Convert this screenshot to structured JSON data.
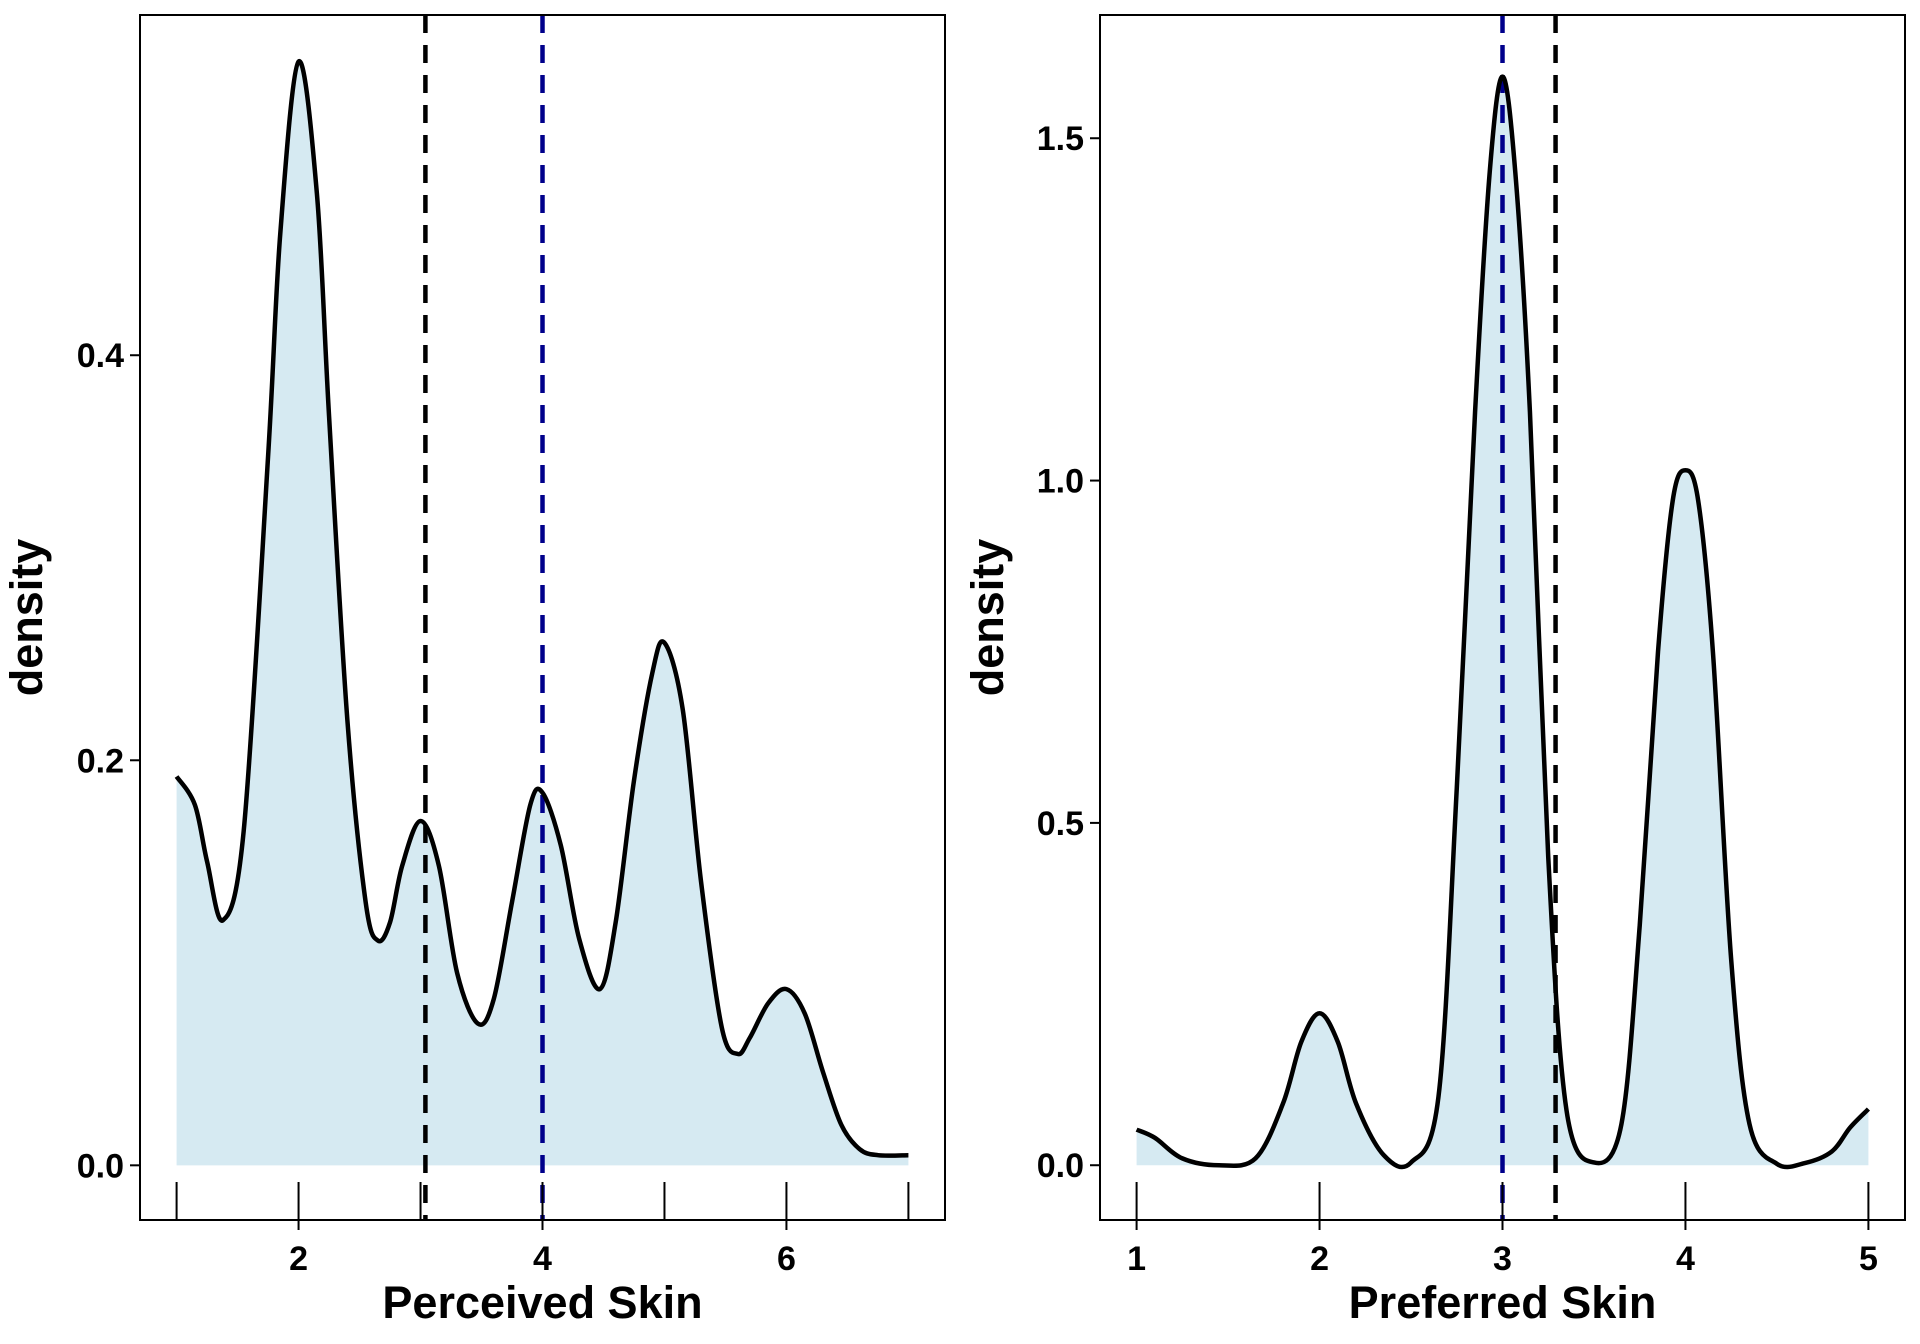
{
  "chart_data": [
    {
      "type": "area",
      "xlabel": "Perceived Skin",
      "ylabel": "density",
      "xlim": [
        0.7,
        7.3
      ],
      "ylim": [
        -0.027,
        0.568
      ],
      "xticks": [
        {
          "value": 2,
          "label": "2"
        },
        {
          "value": 4,
          "label": "4"
        },
        {
          "value": 6,
          "label": "6"
        }
      ],
      "yticks": [
        {
          "value": 0.0,
          "label": "0.0"
        },
        {
          "value": 0.2,
          "label": "0.2"
        },
        {
          "value": 0.4,
          "label": "0.4"
        }
      ],
      "rug": [
        1,
        2,
        3,
        4,
        5,
        6,
        7
      ],
      "vlines": [
        {
          "x": 3.04,
          "color": "#000000"
        },
        {
          "x": 4.0,
          "color": "#00008B"
        }
      ],
      "series": [
        {
          "x": [
            1.0,
            1.15,
            1.25,
            1.38,
            1.55,
            1.75,
            1.85,
            2.0,
            2.15,
            2.25,
            2.4,
            2.55,
            2.65,
            2.75,
            2.85,
            3.0,
            3.15,
            3.3,
            3.47,
            3.6,
            3.75,
            3.9,
            4.0,
            4.15,
            4.3,
            4.47,
            4.6,
            4.75,
            4.9,
            5.0,
            5.15,
            5.3,
            5.47,
            5.6,
            5.7,
            5.85,
            6.0,
            6.15,
            6.3,
            6.45,
            6.6,
            6.75,
            7.0
          ],
          "y": [
            0.192,
            0.178,
            0.15,
            0.121,
            0.165,
            0.35,
            0.46,
            0.545,
            0.48,
            0.37,
            0.22,
            0.13,
            0.111,
            0.12,
            0.148,
            0.17,
            0.148,
            0.095,
            0.07,
            0.082,
            0.13,
            0.178,
            0.184,
            0.158,
            0.112,
            0.087,
            0.12,
            0.19,
            0.243,
            0.258,
            0.225,
            0.14,
            0.068,
            0.055,
            0.063,
            0.08,
            0.087,
            0.075,
            0.046,
            0.02,
            0.008,
            0.005,
            0.005
          ]
        }
      ],
      "fill": "#D6EAF2"
    },
    {
      "type": "area",
      "xlabel": "Preferred Skin",
      "ylabel": "density",
      "xlim": [
        0.8,
        5.2
      ],
      "ylim": [
        -0.08,
        1.68
      ],
      "xticks": [
        {
          "value": 1,
          "label": "1"
        },
        {
          "value": 2,
          "label": "2"
        },
        {
          "value": 3,
          "label": "3"
        },
        {
          "value": 4,
          "label": "4"
        },
        {
          "value": 5,
          "label": "5"
        }
      ],
      "yticks": [
        {
          "value": 0.0,
          "label": "0.0"
        },
        {
          "value": 0.5,
          "label": "0.5"
        },
        {
          "value": 1.0,
          "label": "1.0"
        },
        {
          "value": 1.5,
          "label": "1.5"
        }
      ],
      "rug": [
        1,
        2,
        3,
        4,
        5
      ],
      "vlines": [
        {
          "x": 3.0,
          "color": "#00008B"
        },
        {
          "x": 3.29,
          "color": "#000000"
        }
      ],
      "series": [
        {
          "x": [
            1.0,
            1.1,
            1.25,
            1.45,
            1.65,
            1.8,
            1.9,
            2.0,
            2.1,
            2.2,
            2.35,
            2.5,
            2.65,
            2.75,
            2.85,
            2.93,
            3.0,
            3.07,
            3.15,
            3.25,
            3.35,
            3.5,
            3.65,
            3.75,
            3.85,
            3.93,
            4.0,
            4.07,
            4.15,
            4.25,
            4.35,
            4.5,
            4.65,
            4.8,
            4.9,
            5.0
          ],
          "y": [
            0.052,
            0.04,
            0.01,
            0.0,
            0.01,
            0.09,
            0.18,
            0.222,
            0.18,
            0.09,
            0.015,
            0.004,
            0.1,
            0.55,
            1.1,
            1.45,
            1.59,
            1.45,
            1.1,
            0.45,
            0.08,
            0.004,
            0.06,
            0.35,
            0.75,
            0.97,
            1.015,
            0.97,
            0.75,
            0.3,
            0.06,
            0.002,
            0.003,
            0.02,
            0.055,
            0.082
          ]
        }
      ],
      "fill": "#D6EAF2"
    }
  ]
}
